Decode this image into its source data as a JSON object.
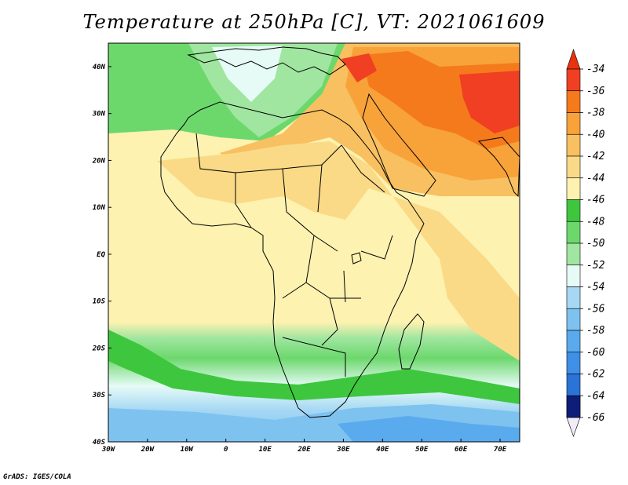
{
  "title": "Temperature at 250hPa [C], VT: 2021061609",
  "credit": "GrADS: IGES/COLA",
  "map": {
    "lon_range": [
      -30,
      75
    ],
    "lat_range": [
      -40,
      45
    ],
    "x_ticks": [
      "30W",
      "20W",
      "10W",
      "0",
      "10E",
      "20E",
      "30E",
      "40E",
      "50E",
      "60E",
      "70E"
    ],
    "y_ticks": [
      "40N",
      "30N",
      "20N",
      "10N",
      "EQ",
      "10S",
      "20S",
      "30S",
      "40S"
    ]
  },
  "colorbar": {
    "labels": [
      "-34",
      "-36",
      "-38",
      "-40",
      "-42",
      "-44",
      "-46",
      "-48",
      "-50",
      "-52",
      "-54",
      "-56",
      "-58",
      "-60",
      "-62",
      "-64",
      "-66"
    ],
    "colors": [
      "#f03f22",
      "#f57a1c",
      "#f8a23a",
      "#f8c060",
      "#fada86",
      "#fdf2b0",
      "#3ec73e",
      "#6cd86c",
      "#a0e6a0",
      "#e6fbf6",
      "#a6d8f4",
      "#7ec2f0",
      "#5aaaee",
      "#3e90e6",
      "#2a74d8",
      "#1a55b8",
      "#0e1e78"
    ],
    "top_arrow_color": "#e8330f",
    "bottom_arrow_color": "#f0ecf8"
  }
}
